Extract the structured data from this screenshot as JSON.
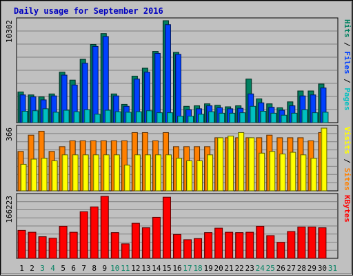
{
  "chart_data": {
    "type": "bar",
    "title": "Daily usage for September 2016",
    "categories": [
      "1",
      "2",
      "3",
      "4",
      "5",
      "6",
      "7",
      "8",
      "9",
      "10",
      "11",
      "12",
      "13",
      "14",
      "15",
      "16",
      "17",
      "18",
      "19",
      "20",
      "21",
      "22",
      "23",
      "24",
      "25",
      "26",
      "27",
      "28",
      "29",
      "30",
      "31"
    ],
    "weekend_days": [
      "3",
      "4",
      "10",
      "11",
      "17",
      "18",
      "24",
      "25",
      "31"
    ],
    "panels": [
      {
        "id": "hits",
        "ymax_label": "10302",
        "ymax": 10302,
        "axis_label_parts": [
          "Pages",
          "Files",
          "Hits"
        ],
        "axis_label_colors": [
          "#00C0C0",
          "#0040FF",
          "#008060"
        ],
        "series": [
          {
            "name": "Hits",
            "color": "#008060",
            "values": [
              3100,
              2800,
              2600,
              2900,
              5100,
              4300,
              6400,
              7900,
              9000,
              2900,
              1850,
              4700,
              5500,
              7200,
              10302,
              7100,
              1650,
              1700,
              1900,
              1750,
              1600,
              1700,
              4400,
              2400,
              1900,
              1500,
              2100,
              3200,
              3200,
              3900,
              0
            ]
          },
          {
            "name": "Files",
            "color": "#0040FF",
            "values": [
              2800,
              2600,
              2300,
              2700,
              4800,
              3800,
              6000,
              7700,
              8700,
              2700,
              1650,
              4400,
              5100,
              7000,
              9900,
              6900,
              1300,
              1400,
              1700,
              1500,
              1400,
              1450,
              2900,
              2000,
              1550,
              1250,
              1700,
              2700,
              2800,
              3500,
              0
            ]
          },
          {
            "name": "Pages",
            "color": "#00C0C0",
            "values": [
              1150,
              1200,
              1400,
              1050,
              1250,
              1100,
              1300,
              850,
              1250,
              1100,
              1050,
              1100,
              1200,
              1000,
              1000,
              650,
              650,
              850,
              1100,
              950,
              950,
              1000,
              1650,
              1150,
              950,
              750,
              950,
              1300,
              1000,
              1050,
              0
            ]
          }
        ]
      },
      {
        "id": "visits",
        "ymax_label": "366",
        "ymax": 366,
        "axis_label_parts": [
          "Sites",
          "Visits"
        ],
        "axis_label_colors": [
          "#FF8000",
          "#FFFF00"
        ],
        "series": [
          {
            "name": "Visits",
            "color": "#FF8000",
            "values": [
              230,
              325,
              348,
              230,
              258,
              292,
              292,
              292,
              292,
              292,
              292,
              340,
              340,
              292,
              340,
              258,
              258,
              258,
              258,
              310,
              310,
              310,
              310,
              310,
              325,
              310,
              310,
              310,
              292,
              340,
              0
            ]
          },
          {
            "name": "Sites",
            "color": "#FFFF00",
            "values": [
              155,
              185,
              190,
              175,
              210,
              210,
              210,
              210,
              210,
              210,
              150,
              210,
              210,
              210,
              210,
              190,
              175,
              175,
              210,
              310,
              320,
              340,
              310,
              220,
              230,
              215,
              225,
              210,
              190,
              366,
              0
            ]
          }
        ]
      },
      {
        "id": "kbytes",
        "ymax_label": "166223",
        "ymax": 166223,
        "axis_label_parts": [
          "KBytes"
        ],
        "axis_label_colors": [
          "#FF0000"
        ],
        "series": [
          {
            "name": "KBytes",
            "color": "#FF0000",
            "values": [
              75000,
              70000,
              58000,
              54000,
              86000,
              70000,
              125000,
              138000,
              166223,
              69000,
              39000,
              94000,
              82000,
              110000,
              164000,
              64000,
              50000,
              53000,
              69000,
              81000,
              70000,
              69000,
              70000,
              86000,
              61000,
              43000,
              72000,
              84000,
              84000,
              82000,
              0
            ]
          }
        ]
      }
    ]
  }
}
